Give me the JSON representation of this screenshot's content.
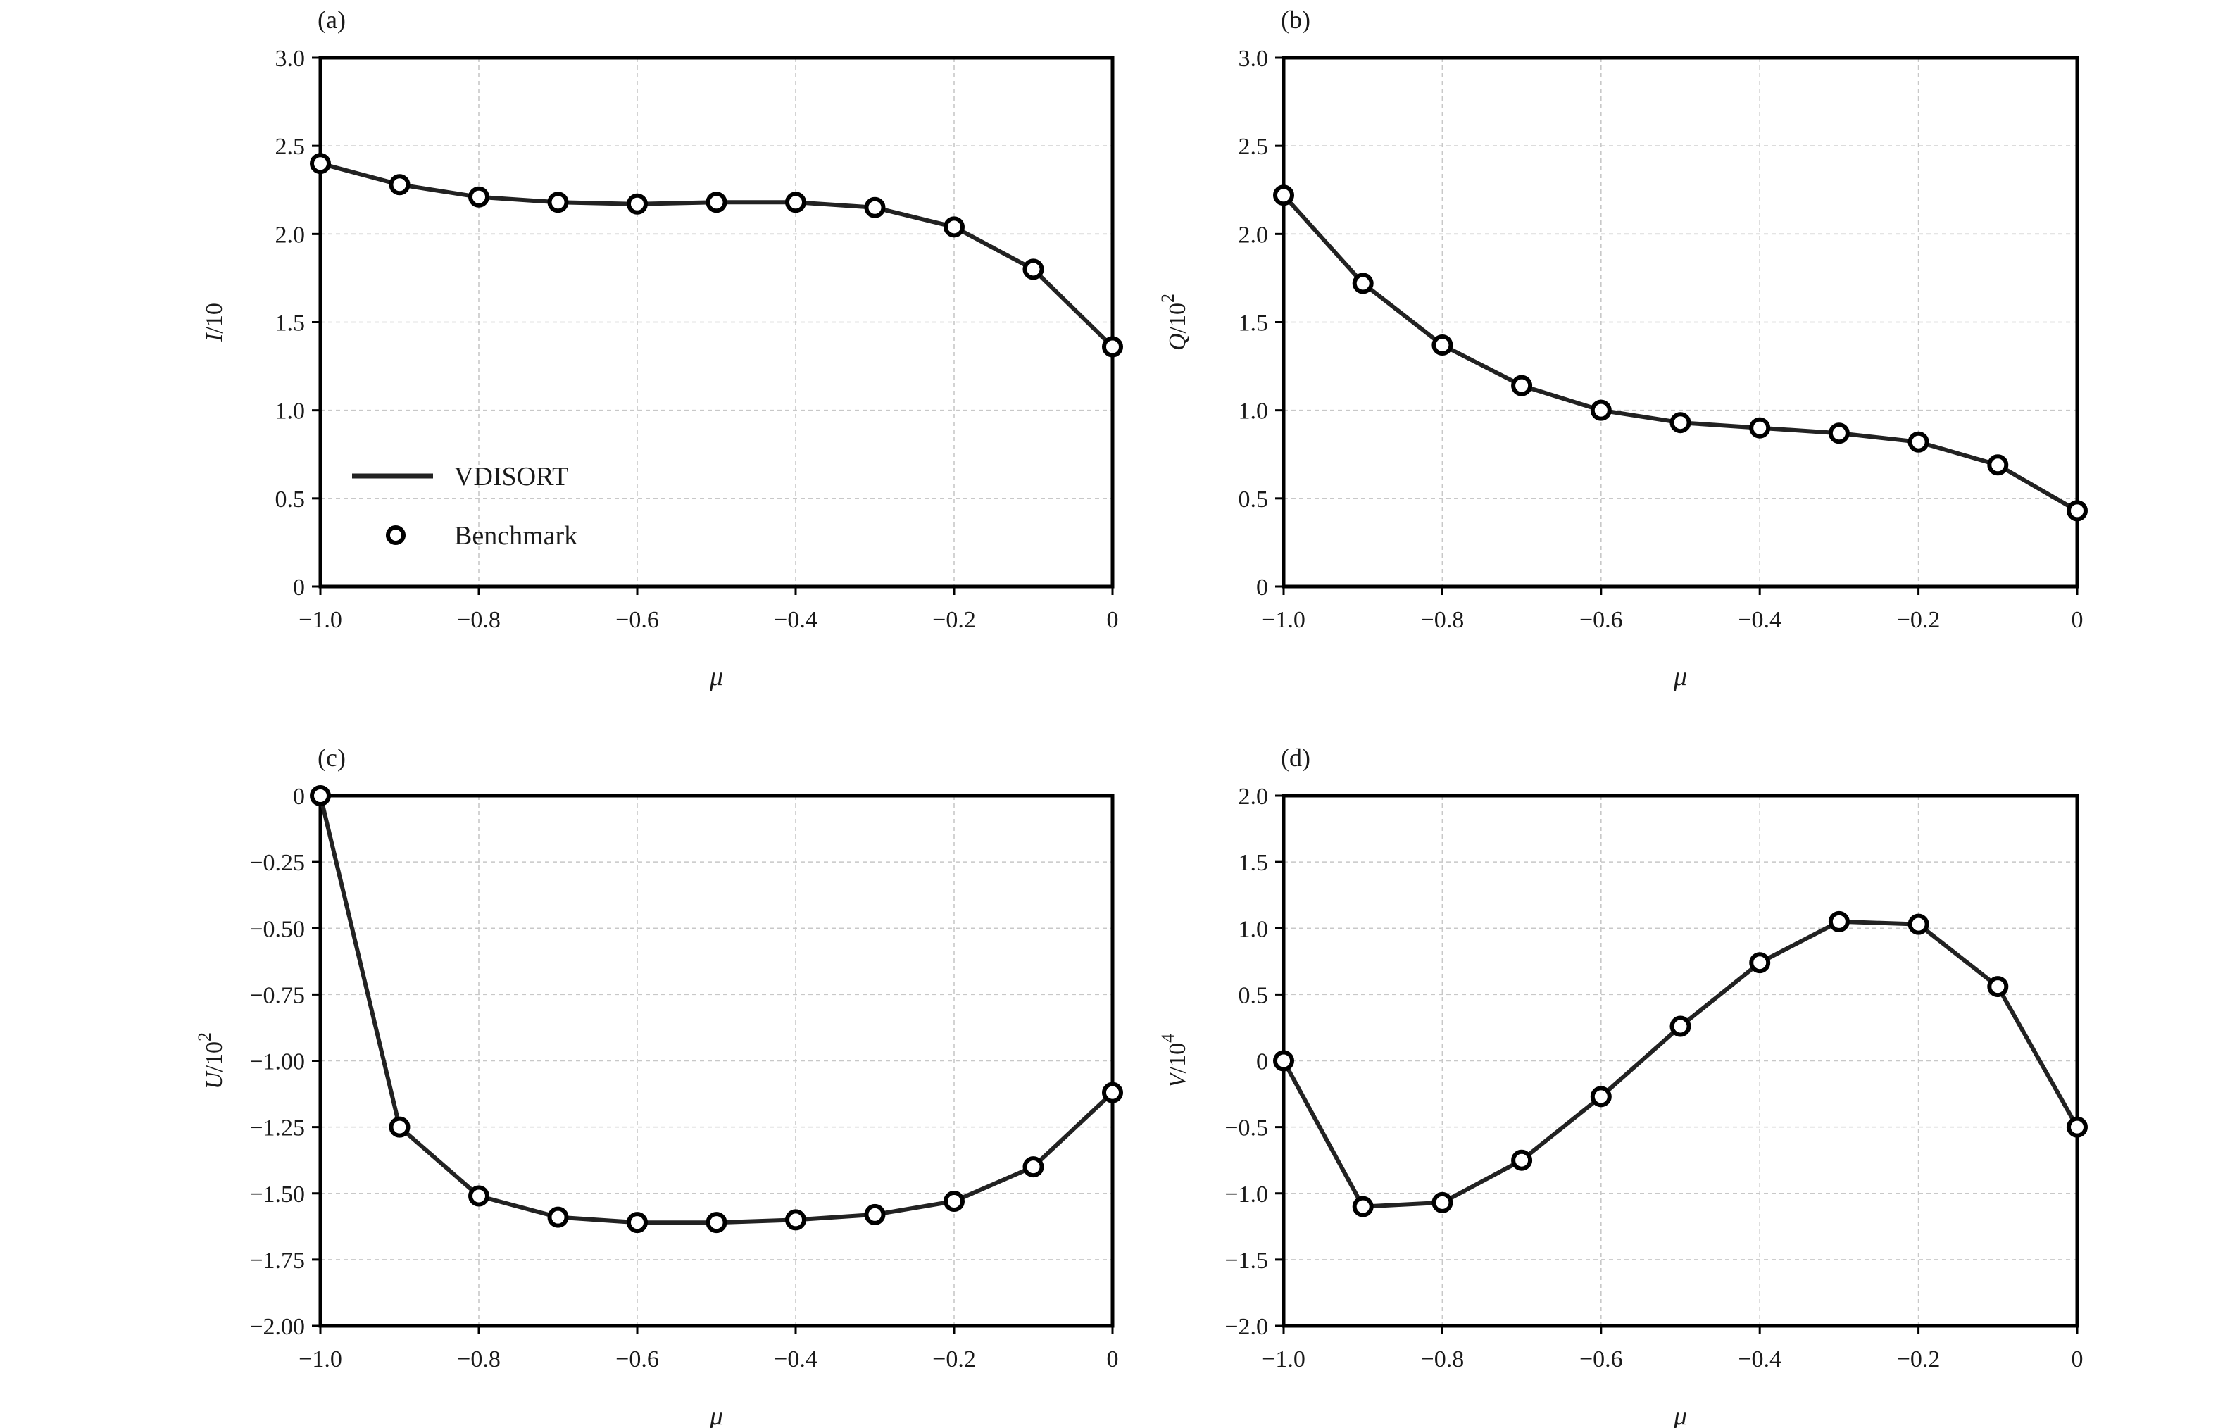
{
  "colors": {
    "line": "#222222",
    "marker_edge": "#000000",
    "grid": "#c8c8c8",
    "background": "#ffffff"
  },
  "legend": {
    "line_label": "VDISORT",
    "marker_label": "Benchmark",
    "placement": "lower-left of panel (a)"
  },
  "chart_data": [
    {
      "type": "line",
      "panel": "(a)",
      "xlabel": "μ",
      "ylabel_var": "I",
      "ylabel_rest": "/10",
      "ylabel_exp": "",
      "xlim": [
        -1.0,
        0
      ],
      "ylim": [
        0,
        3.0
      ],
      "xticks": [
        -1.0,
        -0.8,
        -0.6,
        -0.4,
        -0.2,
        0
      ],
      "xtick_labels": [
        "−1.0",
        "−0.8",
        "−0.6",
        "−0.4",
        "−0.2",
        "0"
      ],
      "yticks": [
        0,
        0.5,
        1.0,
        1.5,
        2.0,
        2.5,
        3.0
      ],
      "ytick_labels": [
        "0",
        "0.5",
        "1.0",
        "1.5",
        "2.0",
        "2.5",
        "3.0"
      ],
      "grid": true,
      "x": [
        -1.0,
        -0.9,
        -0.8,
        -0.7,
        -0.6,
        -0.5,
        -0.4,
        -0.3,
        -0.2,
        -0.1,
        0
      ],
      "series": [
        {
          "name": "VDISORT",
          "style": "line",
          "values": [
            2.4,
            2.28,
            2.21,
            2.18,
            2.17,
            2.18,
            2.18,
            2.15,
            2.04,
            1.8,
            1.36
          ]
        },
        {
          "name": "Benchmark",
          "style": "marker",
          "values": [
            2.4,
            2.28,
            2.21,
            2.18,
            2.17,
            2.18,
            2.18,
            2.15,
            2.04,
            1.8,
            1.36
          ]
        }
      ]
    },
    {
      "type": "line",
      "panel": "(b)",
      "xlabel": "μ",
      "ylabel_var": "Q",
      "ylabel_rest": "/10",
      "ylabel_exp": "2",
      "xlim": [
        -1.0,
        0
      ],
      "ylim": [
        0,
        3.0
      ],
      "xticks": [
        -1.0,
        -0.8,
        -0.6,
        -0.4,
        -0.2,
        0
      ],
      "xtick_labels": [
        "−1.0",
        "−0.8",
        "−0.6",
        "−0.4",
        "−0.2",
        "0"
      ],
      "yticks": [
        0,
        0.5,
        1.0,
        1.5,
        2.0,
        2.5,
        3.0
      ],
      "ytick_labels": [
        "0",
        "0.5",
        "1.0",
        "1.5",
        "2.0",
        "2.5",
        "3.0"
      ],
      "grid": true,
      "x": [
        -1.0,
        -0.9,
        -0.8,
        -0.7,
        -0.6,
        -0.5,
        -0.4,
        -0.3,
        -0.2,
        -0.1,
        0
      ],
      "series": [
        {
          "name": "VDISORT",
          "style": "line",
          "values": [
            2.22,
            1.72,
            1.37,
            1.14,
            1.0,
            0.93,
            0.9,
            0.87,
            0.82,
            0.69,
            0.43
          ]
        },
        {
          "name": "Benchmark",
          "style": "marker",
          "values": [
            2.22,
            1.72,
            1.37,
            1.14,
            1.0,
            0.93,
            0.9,
            0.87,
            0.82,
            0.69,
            0.43
          ]
        }
      ]
    },
    {
      "type": "line",
      "panel": "(c)",
      "xlabel": "μ",
      "ylabel_var": "U",
      "ylabel_rest": "/10",
      "ylabel_exp": "2",
      "xlim": [
        -1.0,
        0
      ],
      "ylim": [
        -2.0,
        0
      ],
      "xticks": [
        -1.0,
        -0.8,
        -0.6,
        -0.4,
        -0.2,
        0
      ],
      "xtick_labels": [
        "−1.0",
        "−0.8",
        "−0.6",
        "−0.4",
        "−0.2",
        "0"
      ],
      "yticks": [
        -2.0,
        -1.75,
        -1.5,
        -1.25,
        -1.0,
        -0.75,
        -0.5,
        -0.25,
        0
      ],
      "ytick_labels": [
        "−2.00",
        "−1.75",
        "−1.50",
        "−1.25",
        "−1.00",
        "−0.75",
        "−0.50",
        "−0.25",
        "0"
      ],
      "grid": true,
      "x": [
        -1.0,
        -0.9,
        -0.8,
        -0.7,
        -0.6,
        -0.5,
        -0.4,
        -0.3,
        -0.2,
        -0.1,
        0
      ],
      "series": [
        {
          "name": "VDISORT",
          "style": "line",
          "values": [
            0.0,
            -1.25,
            -1.51,
            -1.59,
            -1.61,
            -1.61,
            -1.6,
            -1.58,
            -1.53,
            -1.4,
            -1.12
          ]
        },
        {
          "name": "Benchmark",
          "style": "marker",
          "values": [
            0.0,
            -1.25,
            -1.51,
            -1.59,
            -1.61,
            -1.61,
            -1.6,
            -1.58,
            -1.53,
            -1.4,
            -1.12
          ]
        }
      ]
    },
    {
      "type": "line",
      "panel": "(d)",
      "xlabel": "μ",
      "ylabel_var": "V",
      "ylabel_rest": "/10",
      "ylabel_exp": "4",
      "xlim": [
        -1.0,
        0
      ],
      "ylim": [
        -2.0,
        2.0
      ],
      "xticks": [
        -1.0,
        -0.8,
        -0.6,
        -0.4,
        -0.2,
        0
      ],
      "xtick_labels": [
        "−1.0",
        "−0.8",
        "−0.6",
        "−0.4",
        "−0.2",
        "0"
      ],
      "yticks": [
        -2.0,
        -1.5,
        -1.0,
        -0.5,
        0,
        0.5,
        1.0,
        1.5,
        2.0
      ],
      "ytick_labels": [
        "−2.0",
        "−1.5",
        "−1.0",
        "−0.5",
        "0",
        "0.5",
        "1.0",
        "1.5",
        "2.0"
      ],
      "grid": true,
      "x": [
        -1.0,
        -0.9,
        -0.8,
        -0.7,
        -0.6,
        -0.5,
        -0.4,
        -0.3,
        -0.2,
        -0.1,
        0
      ],
      "series": [
        {
          "name": "VDISORT",
          "style": "line",
          "values": [
            0.0,
            -1.1,
            -1.07,
            -0.75,
            -0.27,
            0.26,
            0.74,
            1.05,
            1.03,
            0.56,
            -0.5
          ]
        },
        {
          "name": "Benchmark",
          "style": "marker",
          "values": [
            0.0,
            -1.1,
            -1.07,
            -0.75,
            -0.27,
            0.26,
            0.74,
            1.05,
            1.03,
            0.56,
            -0.5
          ]
        }
      ]
    }
  ]
}
